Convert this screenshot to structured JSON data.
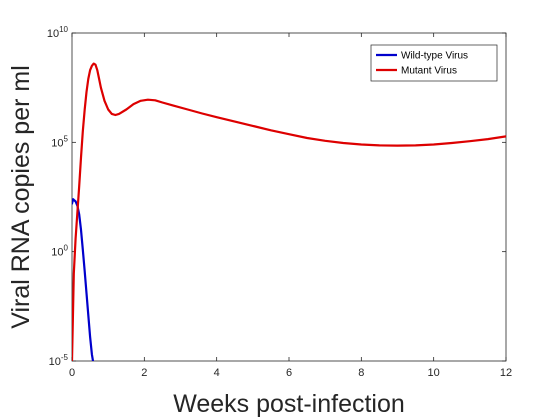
{
  "chart_data": {
    "type": "line",
    "title": "",
    "xlabel": "Weeks post-infection",
    "ylabel": "Viral RNA copies per ml",
    "xlim": [
      0,
      12
    ],
    "ylim_log10": [
      -5,
      10
    ],
    "y_scale": "log",
    "grid": false,
    "legend_position": "top-right",
    "x_ticks": [
      {
        "value": 0,
        "label": "0"
      },
      {
        "value": 2,
        "label": "2"
      },
      {
        "value": 4,
        "label": "4"
      },
      {
        "value": 6,
        "label": "6"
      },
      {
        "value": 8,
        "label": "8"
      },
      {
        "value": 10,
        "label": "10"
      },
      {
        "value": 12,
        "label": "12"
      }
    ],
    "y_ticks": [
      {
        "value": -5,
        "base": "10",
        "exp": "-5"
      },
      {
        "value": 0,
        "base": "10",
        "exp": "0"
      },
      {
        "value": 5,
        "base": "10",
        "exp": "5"
      },
      {
        "value": 10,
        "base": "10",
        "exp": "10"
      }
    ],
    "series": [
      {
        "name": "Wild-type Virus",
        "color": "#0000cc",
        "x": [
          0.0,
          0.03,
          0.06,
          0.1,
          0.15,
          0.2,
          0.25,
          0.3,
          0.35,
          0.4,
          0.45,
          0.5,
          0.55,
          0.58
        ],
        "log10_y": [
          2.2,
          2.4,
          2.35,
          2.3,
          2.1,
          1.7,
          1.0,
          0.1,
          -0.9,
          -1.9,
          -2.9,
          -3.9,
          -4.7,
          -5.0
        ]
      },
      {
        "name": "Mutant Virus",
        "color": "#dd0000",
        "x": [
          0.0,
          0.05,
          0.1,
          0.15,
          0.2,
          0.25,
          0.3,
          0.35,
          0.4,
          0.45,
          0.5,
          0.55,
          0.6,
          0.65,
          0.7,
          0.75,
          0.8,
          0.9,
          1.0,
          1.1,
          1.2,
          1.3,
          1.5,
          1.7,
          1.9,
          2.1,
          2.3,
          2.5,
          2.8,
          3.2,
          3.6,
          4.0,
          4.5,
          5.0,
          5.5,
          6.0,
          6.5,
          7.0,
          7.5,
          8.0,
          8.5,
          9.0,
          9.5,
          10.0,
          10.5,
          11.0,
          11.5,
          12.0
        ],
        "log10_y": [
          -5.0,
          -1.0,
          0.6,
          1.8,
          3.0,
          4.3,
          5.5,
          6.5,
          7.3,
          7.9,
          8.3,
          8.5,
          8.6,
          8.55,
          8.3,
          7.9,
          7.5,
          6.9,
          6.5,
          6.3,
          6.25,
          6.3,
          6.5,
          6.75,
          6.9,
          6.95,
          6.92,
          6.82,
          6.68,
          6.5,
          6.32,
          6.15,
          5.95,
          5.75,
          5.55,
          5.37,
          5.2,
          5.07,
          4.97,
          4.9,
          4.86,
          4.85,
          4.86,
          4.9,
          4.97,
          5.05,
          5.15,
          5.27
        ]
      }
    ]
  }
}
